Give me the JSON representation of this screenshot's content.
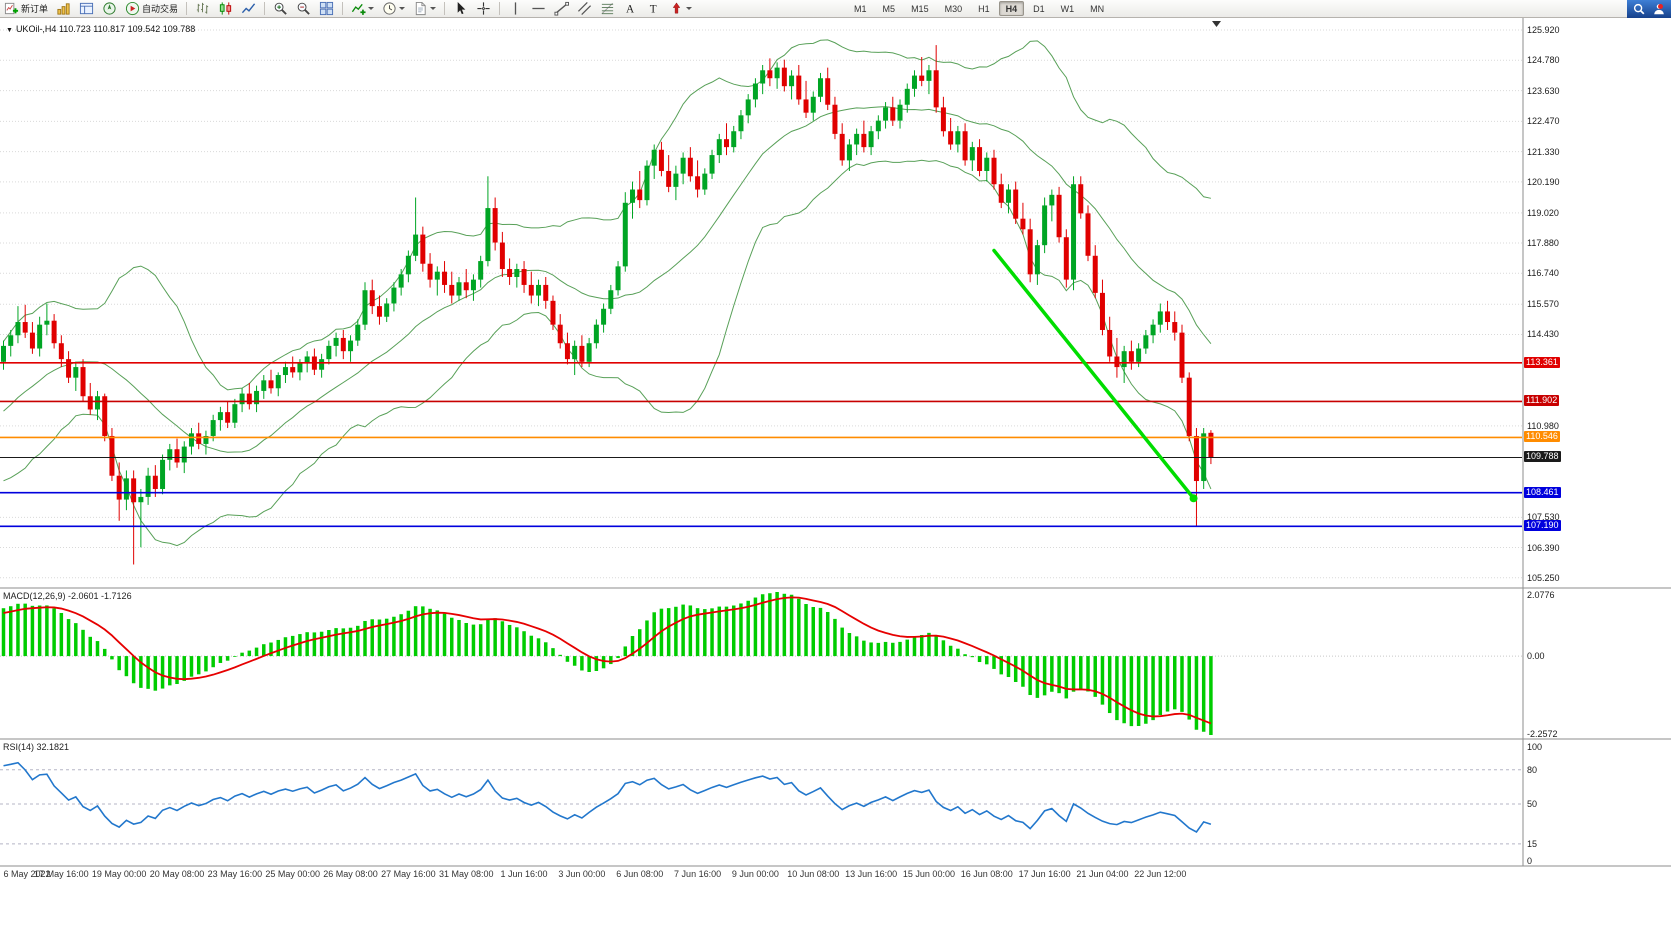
{
  "toolbar": {
    "new_order_label": "新订单",
    "autotrading_label": "自动交易",
    "timeframes": [
      "M1",
      "M5",
      "M15",
      "M30",
      "H1",
      "H4",
      "D1",
      "W1",
      "MN"
    ],
    "active_timeframe": "H4",
    "icon_glyphs": {
      "text": "A",
      "label": "T",
      "title_marker": "▼"
    },
    "buttons": [
      {
        "name": "new-order-button",
        "icon": "new-order",
        "label": "新订单"
      },
      {
        "name": "market-watch-button",
        "icon": "market-watch"
      },
      {
        "name": "data-window-button",
        "icon": "data-window"
      },
      {
        "name": "navigator-button",
        "icon": "navigator"
      },
      {
        "name": "autotrading-button",
        "icon": "autotrading",
        "label": "自动交易"
      },
      {
        "sep": true
      },
      {
        "name": "bar-chart-button",
        "icon": "bars"
      },
      {
        "name": "candlestick-button",
        "icon": "candles"
      },
      {
        "name": "line-chart-button",
        "icon": "line"
      },
      {
        "sep": true
      },
      {
        "name": "zoom-in-button",
        "icon": "zoom-in"
      },
      {
        "name": "zoom-out-button",
        "icon": "zoom-out"
      },
      {
        "name": "tile-windows-button",
        "icon": "tile"
      },
      {
        "sep": true
      },
      {
        "name": "indicators-button",
        "icon": "indicators",
        "dropdown": true
      },
      {
        "name": "periods-button",
        "icon": "clock",
        "dropdown": true
      },
      {
        "name": "templates-button",
        "icon": "template",
        "dropdown": true
      },
      {
        "sep": true
      },
      {
        "name": "cursor-button",
        "icon": "cursor"
      },
      {
        "name": "crosshair-button",
        "icon": "crosshair"
      },
      {
        "sep": true
      },
      {
        "name": "vertical-line-button",
        "icon": "vline"
      },
      {
        "name": "horizontal-line-button",
        "icon": "hline"
      },
      {
        "name": "trendline-button",
        "icon": "tline"
      },
      {
        "name": "channel-button",
        "icon": "channel"
      },
      {
        "name": "fibonacci-button",
        "icon": "fibo"
      },
      {
        "name": "text-button",
        "icon": "text"
      },
      {
        "name": "label-button",
        "icon": "label"
      },
      {
        "name": "arrows-button",
        "icon": "arrows",
        "dropdown": true
      }
    ]
  },
  "chart_data": {
    "type": "candlestick",
    "symbol": "UKOil-",
    "timeframe": "H4",
    "title": "UKOil-,H4",
    "ohlc": {
      "open": "110.723",
      "high": "110.817",
      "low": "109.542",
      "close": "109.788"
    },
    "colors": {
      "bull": "#00a524",
      "bear": "#e00000",
      "grid": "#d9d9d9",
      "bollinger": "#58a058",
      "macd_hist": "#00cc00",
      "macd_signal": "#e60000",
      "rsi": "#2277cc",
      "trend": "#00dd00"
    },
    "price_axis_labels": [
      "125.920",
      "124.780",
      "123.630",
      "122.470",
      "121.330",
      "120.190",
      "119.020",
      "117.880",
      "116.740",
      "115.570",
      "114.430",
      "110.980",
      "107.530",
      "106.390",
      "105.250"
    ],
    "horizontal_lines": [
      {
        "price": 113.361,
        "label": "113.361",
        "color": "#e00000",
        "width": 1.6
      },
      {
        "price": 111.902,
        "label": "111.902",
        "color": "#c80000",
        "width": 1.6
      },
      {
        "price": 110.546,
        "label": "110.546",
        "color": "#ff8c00",
        "width": 1.6
      },
      {
        "price": 109.788,
        "label": "109.788",
        "color": "#1a1a1a",
        "width": 1.1,
        "role": "bid-price"
      },
      {
        "price": 108.461,
        "label": "108.461",
        "color": "#0000dd",
        "width": 1.6
      },
      {
        "price": 107.19,
        "label": "107.190",
        "color": "#0000dd",
        "width": 1.6
      }
    ],
    "trendline": {
      "from_index": 137,
      "from_price": 117.6,
      "to_index": 164.6,
      "to_price": 108.25
    },
    "bollinger": {
      "period": 20,
      "deviation": 2
    },
    "macd": {
      "name": "MACD(12,26,9)",
      "main": "-2.0601",
      "signal": "-1.7126",
      "axis_max": "2.0776",
      "axis_zero": "0.00",
      "axis_min": "-2.2572"
    },
    "rsi": {
      "name": "RSI(14)",
      "value": "32.1821",
      "axis": [
        "100",
        "80",
        "50",
        "15",
        "0"
      ],
      "levels": [
        80,
        50,
        15
      ]
    },
    "time_axis_labels": [
      "6 May 2022",
      "17 May 16:00",
      "19 May 00:00",
      "20 May 08:00",
      "23 May 16:00",
      "25 May 00:00",
      "26 May 08:00",
      "27 May 16:00",
      "31 May 08:00",
      "1 Jun 16:00",
      "3 Jun 00:00",
      "6 Jun 08:00",
      "7 Jun 16:00",
      "9 Jun 00:00",
      "10 Jun 08:00",
      "13 Jun 16:00",
      "15 Jun 00:00",
      "16 Jun 08:00",
      "17 Jun 16:00",
      "21 Jun 04:00",
      "22 Jun 12:00"
    ],
    "candles": [
      [
        113.4,
        114.2,
        113.1,
        114.0
      ],
      [
        114.0,
        114.6,
        113.6,
        114.4
      ],
      [
        114.4,
        115.5,
        114.1,
        114.9
      ],
      [
        114.9,
        115.55,
        114.3,
        114.5
      ],
      [
        114.5,
        114.9,
        113.7,
        113.9
      ],
      [
        113.9,
        115.1,
        113.6,
        114.8
      ],
      [
        114.8,
        115.6,
        114.4,
        114.95
      ],
      [
        114.95,
        115.2,
        113.9,
        114.1
      ],
      [
        114.1,
        114.4,
        113.2,
        113.5
      ],
      [
        113.5,
        113.8,
        112.6,
        112.8
      ],
      [
        112.8,
        113.4,
        112.3,
        113.2
      ],
      [
        113.2,
        113.5,
        111.9,
        112.1
      ],
      [
        112.1,
        112.6,
        111.4,
        111.6
      ],
      [
        111.6,
        112.3,
        111.2,
        112.1
      ],
      [
        112.1,
        112.2,
        110.4,
        110.6
      ],
      [
        110.6,
        110.9,
        108.9,
        109.1
      ],
      [
        109.1,
        109.6,
        107.4,
        108.2
      ],
      [
        108.2,
        109.3,
        107.8,
        109.0
      ],
      [
        109.0,
        109.3,
        105.75,
        108.1
      ],
      [
        108.1,
        108.6,
        106.4,
        108.3
      ],
      [
        108.3,
        109.4,
        108.0,
        109.1
      ],
      [
        109.1,
        109.5,
        108.3,
        108.6
      ],
      [
        108.6,
        109.9,
        108.4,
        109.7
      ],
      [
        109.7,
        110.3,
        109.3,
        110.1
      ],
      [
        110.1,
        110.5,
        109.4,
        109.6
      ],
      [
        109.6,
        110.4,
        109.2,
        110.2
      ],
      [
        110.2,
        110.9,
        109.9,
        110.7
      ],
      [
        110.7,
        111.1,
        110.1,
        110.3
      ],
      [
        110.3,
        110.8,
        109.9,
        110.6
      ],
      [
        110.6,
        111.4,
        110.4,
        111.2
      ],
      [
        111.2,
        111.7,
        110.8,
        111.5
      ],
      [
        111.5,
        111.9,
        110.9,
        111.1
      ],
      [
        111.1,
        112.0,
        110.9,
        111.8
      ],
      [
        111.8,
        112.4,
        111.5,
        112.2
      ],
      [
        112.2,
        112.6,
        111.6,
        111.8
      ],
      [
        111.8,
        112.5,
        111.5,
        112.3
      ],
      [
        112.3,
        112.9,
        112.0,
        112.7
      ],
      [
        112.7,
        113.1,
        112.2,
        112.4
      ],
      [
        112.4,
        113.0,
        112.1,
        112.9
      ],
      [
        112.9,
        113.4,
        112.6,
        113.2
      ],
      [
        113.2,
        113.6,
        112.8,
        113.0
      ],
      [
        113.0,
        113.5,
        112.7,
        113.35
      ],
      [
        113.35,
        113.8,
        113.0,
        113.6
      ],
      [
        113.6,
        113.9,
        112.9,
        113.1
      ],
      [
        113.1,
        113.7,
        112.8,
        113.5
      ],
      [
        113.5,
        114.2,
        113.3,
        114.0
      ],
      [
        114.0,
        114.5,
        113.6,
        114.3
      ],
      [
        114.3,
        114.6,
        113.5,
        113.8
      ],
      [
        113.8,
        114.4,
        113.4,
        114.2
      ],
      [
        114.2,
        115.0,
        114.0,
        114.8
      ],
      [
        114.8,
        116.4,
        114.6,
        116.1
      ],
      [
        116.1,
        116.5,
        115.2,
        115.5
      ],
      [
        115.5,
        115.9,
        114.8,
        115.1
      ],
      [
        115.1,
        115.8,
        114.9,
        115.6
      ],
      [
        115.6,
        116.4,
        115.3,
        116.2
      ],
      [
        116.2,
        116.9,
        115.9,
        116.7
      ],
      [
        116.7,
        117.6,
        116.4,
        117.4
      ],
      [
        117.4,
        119.6,
        117.2,
        118.2
      ],
      [
        118.2,
        118.5,
        116.8,
        117.1
      ],
      [
        117.1,
        117.5,
        116.2,
        116.5
      ],
      [
        116.5,
        117.0,
        115.9,
        116.8
      ],
      [
        116.8,
        117.2,
        116.0,
        116.3
      ],
      [
        116.3,
        116.8,
        115.6,
        115.9
      ],
      [
        115.9,
        116.6,
        115.7,
        116.4
      ],
      [
        116.4,
        116.9,
        115.8,
        116.1
      ],
      [
        116.1,
        116.7,
        115.7,
        116.5
      ],
      [
        116.5,
        117.4,
        116.2,
        117.2
      ],
      [
        117.2,
        120.4,
        117.0,
        119.2
      ],
      [
        119.2,
        119.6,
        117.6,
        117.9
      ],
      [
        117.9,
        118.3,
        116.6,
        116.9
      ],
      [
        116.9,
        117.3,
        116.3,
        116.6
      ],
      [
        116.6,
        117.1,
        116.2,
        116.9
      ],
      [
        116.9,
        117.2,
        116.0,
        116.3
      ],
      [
        116.3,
        116.8,
        115.6,
        115.9
      ],
      [
        115.9,
        116.5,
        115.5,
        116.3
      ],
      [
        116.3,
        116.6,
        115.4,
        115.7
      ],
      [
        115.7,
        115.9,
        114.6,
        114.8
      ],
      [
        114.8,
        115.2,
        113.9,
        114.1
      ],
      [
        114.1,
        114.5,
        113.3,
        113.5
      ],
      [
        113.5,
        114.2,
        112.9,
        114.0
      ],
      [
        114.0,
        114.4,
        113.2,
        113.4
      ],
      [
        113.4,
        114.3,
        113.2,
        114.1
      ],
      [
        114.1,
        115.0,
        113.9,
        114.8
      ],
      [
        114.8,
        115.6,
        114.5,
        115.4
      ],
      [
        115.4,
        116.3,
        115.2,
        116.1
      ],
      [
        116.1,
        117.2,
        115.9,
        117.0
      ],
      [
        117.0,
        119.8,
        116.8,
        119.4
      ],
      [
        119.4,
        120.2,
        118.8,
        119.9
      ],
      [
        119.9,
        120.6,
        119.2,
        119.5
      ],
      [
        119.5,
        121.0,
        119.3,
        120.8
      ],
      [
        120.8,
        121.6,
        120.3,
        121.4
      ],
      [
        121.4,
        121.7,
        120.4,
        120.6
      ],
      [
        120.6,
        121.2,
        119.8,
        120.0
      ],
      [
        120.0,
        120.8,
        119.5,
        120.5
      ],
      [
        120.5,
        121.3,
        120.1,
        121.1
      ],
      [
        121.1,
        121.5,
        120.2,
        120.4
      ],
      [
        120.4,
        121.0,
        119.6,
        119.9
      ],
      [
        119.9,
        120.7,
        119.7,
        120.5
      ],
      [
        120.5,
        121.4,
        120.3,
        121.2
      ],
      [
        121.2,
        122.0,
        120.9,
        121.8
      ],
      [
        121.8,
        122.4,
        121.2,
        121.5
      ],
      [
        121.5,
        122.3,
        121.3,
        122.1
      ],
      [
        122.1,
        122.9,
        121.8,
        122.7
      ],
      [
        122.7,
        123.5,
        122.4,
        123.3
      ],
      [
        123.3,
        124.1,
        123.0,
        123.9
      ],
      [
        123.9,
        124.6,
        123.5,
        124.4
      ],
      [
        124.4,
        124.85,
        123.8,
        124.1
      ],
      [
        124.1,
        124.7,
        123.7,
        124.5
      ],
      [
        124.5,
        124.8,
        123.6,
        123.8
      ],
      [
        123.8,
        124.4,
        123.3,
        124.2
      ],
      [
        124.2,
        124.6,
        123.1,
        123.3
      ],
      [
        123.3,
        124.0,
        122.6,
        122.8
      ],
      [
        122.8,
        123.6,
        122.5,
        123.4
      ],
      [
        123.4,
        124.3,
        123.2,
        124.1
      ],
      [
        124.1,
        124.5,
        122.9,
        123.1
      ],
      [
        123.1,
        123.4,
        121.8,
        122.0
      ],
      [
        122.0,
        122.4,
        120.8,
        121.0
      ],
      [
        121.0,
        121.8,
        120.6,
        121.6
      ],
      [
        121.6,
        122.2,
        121.2,
        122.0
      ],
      [
        122.0,
        122.5,
        121.3,
        121.5
      ],
      [
        121.5,
        122.3,
        121.2,
        122.1
      ],
      [
        122.1,
        122.7,
        121.8,
        122.5
      ],
      [
        122.5,
        123.2,
        122.2,
        123.0
      ],
      [
        123.0,
        123.4,
        122.3,
        122.5
      ],
      [
        122.5,
        123.3,
        122.2,
        123.1
      ],
      [
        123.1,
        123.9,
        122.8,
        123.7
      ],
      [
        123.7,
        124.4,
        123.4,
        124.2
      ],
      [
        124.2,
        124.9,
        123.8,
        124.0
      ],
      [
        124.0,
        124.6,
        123.5,
        124.4
      ],
      [
        124.4,
        125.35,
        122.8,
        123.0
      ],
      [
        123.0,
        123.4,
        121.9,
        122.1
      ],
      [
        122.1,
        122.6,
        121.4,
        121.6
      ],
      [
        121.6,
        122.3,
        121.3,
        122.1
      ],
      [
        122.1,
        122.4,
        120.8,
        121.0
      ],
      [
        121.0,
        121.7,
        120.6,
        121.5
      ],
      [
        121.5,
        121.8,
        120.4,
        120.6
      ],
      [
        120.6,
        121.3,
        120.2,
        121.1
      ],
      [
        121.1,
        121.4,
        119.9,
        120.1
      ],
      [
        120.1,
        120.5,
        119.2,
        119.4
      ],
      [
        119.4,
        120.1,
        119.0,
        119.9
      ],
      [
        119.9,
        120.2,
        118.6,
        118.8
      ],
      [
        118.8,
        119.4,
        118.2,
        118.4
      ],
      [
        118.4,
        118.8,
        116.4,
        116.7
      ],
      [
        116.7,
        118.0,
        116.3,
        117.8
      ],
      [
        117.8,
        119.6,
        117.5,
        119.3
      ],
      [
        119.3,
        119.9,
        118.7,
        119.7
      ],
      [
        119.7,
        120.0,
        117.9,
        118.1
      ],
      [
        118.1,
        118.4,
        116.2,
        116.5
      ],
      [
        116.5,
        120.4,
        116.1,
        120.1
      ],
      [
        120.1,
        120.4,
        118.8,
        119.0
      ],
      [
        119.0,
        119.3,
        117.2,
        117.4
      ],
      [
        117.4,
        117.8,
        115.8,
        116.0
      ],
      [
        116.0,
        116.5,
        114.4,
        114.6
      ],
      [
        114.6,
        115.1,
        113.4,
        113.6
      ],
      [
        113.6,
        114.3,
        112.8,
        113.2
      ],
      [
        113.2,
        114.0,
        112.6,
        113.8
      ],
      [
        113.8,
        114.2,
        113.1,
        113.4
      ],
      [
        113.4,
        114.1,
        113.2,
        113.9
      ],
      [
        113.9,
        114.6,
        113.7,
        114.4
      ],
      [
        114.4,
        115.0,
        114.1,
        114.8
      ],
      [
        114.8,
        115.6,
        114.5,
        115.3
      ],
      [
        115.3,
        115.7,
        114.6,
        114.9
      ],
      [
        114.9,
        115.3,
        114.2,
        114.5
      ],
      [
        114.5,
        114.8,
        112.6,
        112.8
      ],
      [
        112.8,
        113.0,
        110.4,
        110.6
      ],
      [
        110.6,
        110.9,
        107.2,
        108.9
      ],
      [
        108.9,
        110.9,
        108.6,
        110.7
      ],
      [
        110.72,
        110.82,
        109.54,
        109.79
      ]
    ]
  }
}
